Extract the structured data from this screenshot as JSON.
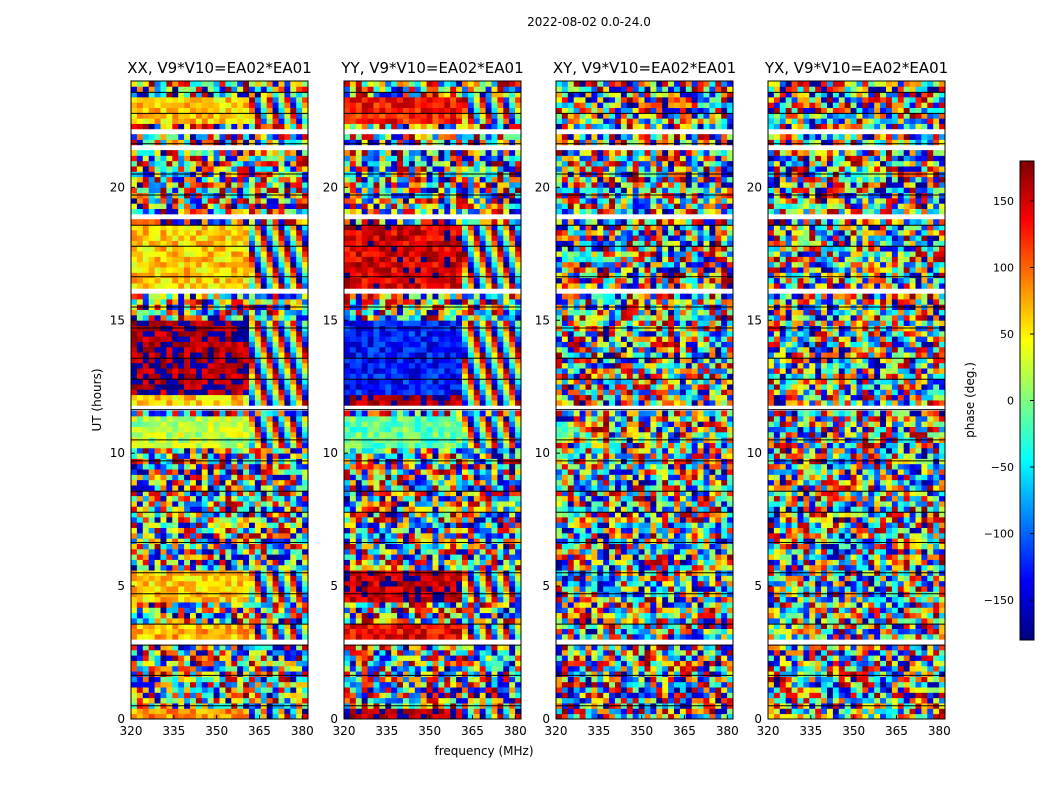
{
  "chart_data": {
    "type": "heatmap",
    "suptitle": "2022-08-02 0.0-24.0",
    "xlabel": "frequency (MHz)",
    "ylabel": "UT (hours)",
    "xlim": [
      320,
      382
    ],
    "ylim": [
      0,
      24
    ],
    "xticks": [
      320,
      335,
      350,
      365,
      380
    ],
    "yticks": [
      0,
      5,
      10,
      15,
      20
    ],
    "colorbar": {
      "label": "phase (deg.)",
      "range": [
        -180,
        180
      ],
      "ticks": [
        150,
        100,
        50,
        0,
        -50,
        -100,
        -150
      ],
      "tick_labels": [
        "150",
        "100",
        "50",
        "0",
        "−50",
        "−100",
        "−150"
      ],
      "colormap": "jet",
      "colors": [
        "#00007f",
        "#0000ff",
        "#007fff",
        "#00ffff",
        "#7fff7f",
        "#ffff00",
        "#ff7f00",
        "#ff0000",
        "#7f0000"
      ]
    },
    "panels": [
      {
        "title": "XX, V9*V10=EA02*EA01",
        "polarization": "XX"
      },
      {
        "title": "YY, V9*V10=EA02*EA01",
        "polarization": "YY"
      },
      {
        "title": "XY, V9*V10=EA02*EA01",
        "polarization": "XY"
      },
      {
        "title": "YX, V9*V10=EA02*EA01",
        "polarization": "YX"
      }
    ],
    "flagged_ut_ranges": [
      [
        2.85,
        3.0
      ],
      [
        11.55,
        11.75
      ],
      [
        16.05,
        16.2
      ],
      [
        18.9,
        19.05
      ],
      [
        21.45,
        21.6
      ],
      [
        22.0,
        22.2
      ]
    ],
    "coherent_segments": [
      {
        "ut": [
          0.0,
          0.45
        ],
        "phase": {
          "XX": 80,
          "YY": 170,
          "XY": null,
          "YX": null
        }
      },
      {
        "ut": [
          3.0,
          3.6
        ],
        "phase": {
          "XX": 70,
          "YY": 140,
          "XY": null,
          "YX": null
        }
      },
      {
        "ut": [
          4.4,
          5.7
        ],
        "phase": {
          "XX": 60,
          "YY": 160,
          "XY": null,
          "YX": null
        }
      },
      {
        "ut": [
          10.2,
          11.45
        ],
        "phase": {
          "XX": 20,
          "YY": -10,
          "XY": null,
          "YX": null
        }
      },
      {
        "ut": [
          11.8,
          12.2
        ],
        "phase": {
          "XX": 60,
          "YY": 170,
          "XY": null,
          "YX": null
        }
      },
      {
        "ut": [
          12.2,
          15.0
        ],
        "phase": {
          "XX": 170,
          "YY": -130,
          "XY": null,
          "YX": null
        }
      },
      {
        "ut": [
          16.2,
          18.7
        ],
        "phase": {
          "XX": 60,
          "YY": 150,
          "XY": null,
          "YX": null
        }
      },
      {
        "ut": [
          22.5,
          23.5
        ],
        "phase": {
          "XX": 60,
          "YY": 130,
          "XY": null,
          "YX": null
        }
      }
    ]
  }
}
